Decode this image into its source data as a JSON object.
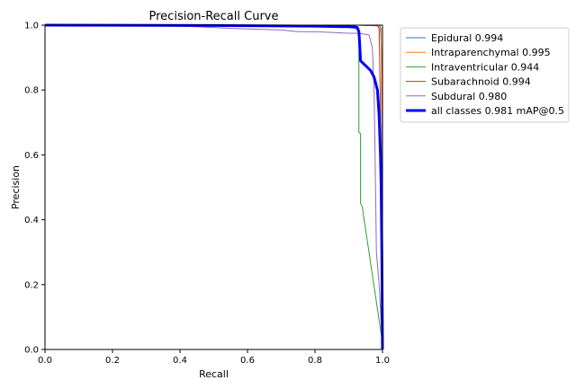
{
  "chart_data": {
    "type": "line",
    "title": "Precision-Recall Curve",
    "xlabel": "Recall",
    "ylabel": "Precision",
    "xlim": [
      0,
      1
    ],
    "ylim": [
      0,
      1
    ],
    "xticks": [
      "0.0",
      "0.2",
      "0.4",
      "0.6",
      "0.8",
      "1.0"
    ],
    "yticks": [
      "0.0",
      "0.2",
      "0.4",
      "0.6",
      "0.8",
      "1.0"
    ],
    "grid": false,
    "legend_position": "outside-upper-right",
    "series": [
      {
        "name": "Epidural 0.994",
        "color": "#1f77b4",
        "width": 1,
        "points": [
          [
            0,
            1
          ],
          [
            0.97,
            1
          ],
          [
            0.985,
            0.999
          ],
          [
            0.992,
            0.997
          ],
          [
            0.995,
            0.99
          ],
          [
            0.997,
            0.9
          ],
          [
            0.998,
            0.7
          ],
          [
            0.999,
            0.4
          ],
          [
            1,
            0.05
          ],
          [
            1,
            0
          ]
        ]
      },
      {
        "name": "Intraparenchymal 0.995",
        "color": "#ff7f0e",
        "width": 1,
        "points": [
          [
            0,
            1
          ],
          [
            0.97,
            1
          ],
          [
            0.985,
            0.999
          ],
          [
            0.99,
            0.998
          ],
          [
            0.993,
            0.99
          ],
          [
            0.996,
            0.95
          ],
          [
            0.998,
            0.8
          ],
          [
            0.999,
            0.5
          ],
          [
            1,
            0.1
          ],
          [
            1,
            0
          ]
        ]
      },
      {
        "name": "Intraventricular 0.944",
        "color": "#2ca02c",
        "width": 1,
        "points": [
          [
            0,
            1
          ],
          [
            0.9,
            1
          ],
          [
            0.92,
            0.998
          ],
          [
            0.93,
            0.99
          ],
          [
            0.93,
            0.67
          ],
          [
            0.935,
            0.665
          ],
          [
            0.935,
            0.45
          ],
          [
            0.94,
            0.44
          ],
          [
            1,
            0.02
          ],
          [
            1,
            0
          ]
        ]
      },
      {
        "name": "Subarachnoid 0.994",
        "color": "#d62728",
        "width": 1,
        "points": [
          [
            0,
            1
          ],
          [
            0.93,
            1
          ],
          [
            0.95,
            0.999
          ],
          [
            0.97,
            0.999
          ],
          [
            0.985,
            0.998
          ],
          [
            0.99,
            0.99
          ],
          [
            0.993,
            0.8
          ],
          [
            0.995,
            0.5
          ],
          [
            0.998,
            0.1
          ],
          [
            1,
            0
          ]
        ]
      },
      {
        "name": "Subdural 0.980",
        "color": "#9467bd",
        "width": 1,
        "points": [
          [
            0,
            1
          ],
          [
            0.3,
            0.999
          ],
          [
            0.45,
            0.995
          ],
          [
            0.55,
            0.99
          ],
          [
            0.7,
            0.985
          ],
          [
            0.75,
            0.98
          ],
          [
            0.8,
            0.98
          ],
          [
            0.9,
            0.975
          ],
          [
            0.93,
            0.975
          ],
          [
            0.96,
            0.97
          ],
          [
            0.97,
            0.93
          ],
          [
            0.975,
            0.8
          ],
          [
            0.978,
            0.6
          ],
          [
            0.982,
            0.3
          ],
          [
            0.99,
            0.2
          ],
          [
            1,
            0
          ]
        ]
      },
      {
        "name": "all classes 0.981 mAP@0.5",
        "color": "#0000ff",
        "width": 3,
        "points": [
          [
            0,
            1
          ],
          [
            0.5,
            0.999
          ],
          [
            0.8,
            0.997
          ],
          [
            0.9,
            0.995
          ],
          [
            0.925,
            0.993
          ],
          [
            0.93,
            0.98
          ],
          [
            0.932,
            0.95
          ],
          [
            0.935,
            0.89
          ],
          [
            0.945,
            0.88
          ],
          [
            0.955,
            0.87
          ],
          [
            0.965,
            0.86
          ],
          [
            0.975,
            0.84
          ],
          [
            0.985,
            0.8
          ],
          [
            0.99,
            0.72
          ],
          [
            0.994,
            0.6
          ],
          [
            0.996,
            0.5
          ],
          [
            0.998,
            0.3
          ],
          [
            1,
            0
          ]
        ]
      }
    ]
  }
}
